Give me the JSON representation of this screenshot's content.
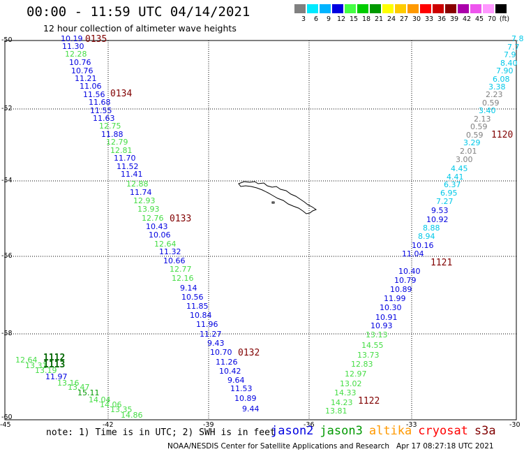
{
  "title": "00:00 - 11:59 UTC 04/14/2021",
  "subtitle": "12 hour collection of altimeter wave heights",
  "colorbar": {
    "colors": [
      "#808080",
      "#00eaff",
      "#00b4ff",
      "#0000e0",
      "#44ff44",
      "#00cc00",
      "#009900",
      "#ffff00",
      "#ffcc00",
      "#ff9900",
      "#ff0000",
      "#cc0000",
      "#880000",
      "#aa00aa",
      "#ee55ee",
      "#ff99ff",
      "#000000"
    ],
    "ticks": [
      "3",
      "6",
      "9",
      "12",
      "15",
      "18",
      "21",
      "24",
      "27",
      "30",
      "33",
      "36",
      "39",
      "42",
      "45",
      "70",
      "(ft)"
    ]
  },
  "lat_labels": [
    "-50",
    "-52",
    "-54",
    "-56",
    "-58",
    "-60"
  ],
  "lon_labels": [
    "-45",
    "-42",
    "-39",
    "-36",
    "-33",
    "-30"
  ],
  "tracks": [
    {
      "label": "0135",
      "color": "#800000"
    },
    {
      "label": "0134",
      "color": "#800000"
    },
    {
      "label": "0133",
      "color": "#800000"
    },
    {
      "label": "0132",
      "color": "#800000"
    },
    {
      "label": "1120",
      "color": "#800000"
    },
    {
      "label": "1121",
      "color": "#800000"
    },
    {
      "label": "1122",
      "color": "#800000"
    },
    {
      "label": "1112",
      "color": "#006600"
    },
    {
      "label": "1113",
      "color": "#006600"
    }
  ],
  "points": [
    {
      "v": "10.19",
      "c": "#0000e0"
    },
    {
      "v": "11.30",
      "c": "#0000e0"
    },
    {
      "v": "12.28",
      "c": "#44dd44"
    },
    {
      "v": "10.76",
      "c": "#0000e0"
    },
    {
      "v": "10.76",
      "c": "#0000e0"
    },
    {
      "v": "11.21",
      "c": "#0000e0"
    },
    {
      "v": "11.06",
      "c": "#0000e0"
    },
    {
      "v": "11.56",
      "c": "#0000e0"
    },
    {
      "v": "11.68",
      "c": "#0000e0"
    },
    {
      "v": "11.55",
      "c": "#0000e0"
    },
    {
      "v": "11.63",
      "c": "#0000e0"
    },
    {
      "v": "12.75",
      "c": "#44dd44"
    },
    {
      "v": "11.88",
      "c": "#0000e0"
    },
    {
      "v": "12.79",
      "c": "#44dd44"
    },
    {
      "v": "12.81",
      "c": "#44dd44"
    },
    {
      "v": "11.70",
      "c": "#0000e0"
    },
    {
      "v": "11.52",
      "c": "#0000e0"
    },
    {
      "v": "11.41",
      "c": "#0000e0"
    },
    {
      "v": "12.88",
      "c": "#44dd44"
    },
    {
      "v": "11.74",
      "c": "#0000e0"
    },
    {
      "v": "12.93",
      "c": "#44dd44"
    },
    {
      "v": "13.93",
      "c": "#44dd44"
    },
    {
      "v": "12.76",
      "c": "#44dd44"
    },
    {
      "v": "10.43",
      "c": "#0000e0"
    },
    {
      "v": "10.06",
      "c": "#0000e0"
    },
    {
      "v": "12.64",
      "c": "#44dd44"
    },
    {
      "v": "11.32",
      "c": "#0000e0"
    },
    {
      "v": "10.66",
      "c": "#0000e0"
    },
    {
      "v": "12.77",
      "c": "#44dd44"
    },
    {
      "v": "12.16",
      "c": "#44dd44"
    },
    {
      "v": "9.14",
      "c": "#0000e0"
    },
    {
      "v": "10.56",
      "c": "#0000e0"
    },
    {
      "v": "11.85",
      "c": "#0000e0"
    },
    {
      "v": "10.84",
      "c": "#0000e0"
    },
    {
      "v": "11.96",
      "c": "#0000e0"
    },
    {
      "v": "11.27",
      "c": "#0000e0"
    },
    {
      "v": "9.43",
      "c": "#0000e0"
    },
    {
      "v": "10.70",
      "c": "#0000e0"
    },
    {
      "v": "11.26",
      "c": "#0000e0"
    },
    {
      "v": "10.42",
      "c": "#0000e0"
    },
    {
      "v": "9.64",
      "c": "#0000e0"
    },
    {
      "v": "11.53",
      "c": "#0000e0"
    },
    {
      "v": "10.89",
      "c": "#0000e0"
    },
    {
      "v": "9.44",
      "c": "#0000e0"
    },
    {
      "v": "7.8",
      "c": "#00c8e8"
    },
    {
      "v": "7.7",
      "c": "#00c8e8"
    },
    {
      "v": "7.9",
      "c": "#00c8e8"
    },
    {
      "v": "8.40",
      "c": "#00c8e8"
    },
    {
      "v": "7.90",
      "c": "#00c8e8"
    },
    {
      "v": "6.08",
      "c": "#00c8e8"
    },
    {
      "v": "3.38",
      "c": "#00c8e8"
    },
    {
      "v": "2.23",
      "c": "#808080"
    },
    {
      "v": "0.59",
      "c": "#808080"
    },
    {
      "v": "3.40",
      "c": "#00c8e8"
    },
    {
      "v": "2.13",
      "c": "#808080"
    },
    {
      "v": "0.59",
      "c": "#808080"
    },
    {
      "v": "0.59",
      "c": "#808080"
    },
    {
      "v": "3.29",
      "c": "#00c8e8"
    },
    {
      "v": "2.01",
      "c": "#808080"
    },
    {
      "v": "3.00",
      "c": "#808080"
    },
    {
      "v": "4.45",
      "c": "#00c8e8"
    },
    {
      "v": "4.41",
      "c": "#00c8e8"
    },
    {
      "v": "6.37",
      "c": "#00c8e8"
    },
    {
      "v": "6.95",
      "c": "#00c8e8"
    },
    {
      "v": "7.27",
      "c": "#00c8e8"
    },
    {
      "v": "9.53",
      "c": "#0000e0"
    },
    {
      "v": "10.92",
      "c": "#0000e0"
    },
    {
      "v": "8.88",
      "c": "#00c8e8"
    },
    {
      "v": "8.94",
      "c": "#00c8e8"
    },
    {
      "v": "10.16",
      "c": "#0000e0"
    },
    {
      "v": "11.04",
      "c": "#0000e0"
    },
    {
      "v": "10.40",
      "c": "#0000e0"
    },
    {
      "v": "10.79",
      "c": "#0000e0"
    },
    {
      "v": "10.89",
      "c": "#0000e0"
    },
    {
      "v": "11.99",
      "c": "#0000e0"
    },
    {
      "v": "10.30",
      "c": "#0000e0"
    },
    {
      "v": "10.91",
      "c": "#0000e0"
    },
    {
      "v": "10.93",
      "c": "#0000e0"
    },
    {
      "v": "13.13",
      "c": "#44dd44"
    },
    {
      "v": "14.55",
      "c": "#44dd44"
    },
    {
      "v": "13.73",
      "c": "#44dd44"
    },
    {
      "v": "12.83",
      "c": "#44dd44"
    },
    {
      "v": "12.97",
      "c": "#44dd44"
    },
    {
      "v": "13.02",
      "c": "#44dd44"
    },
    {
      "v": "14.33",
      "c": "#44dd44"
    },
    {
      "v": "14.23",
      "c": "#44dd44"
    },
    {
      "v": "13.81",
      "c": "#44dd44"
    },
    {
      "v": "12.64",
      "c": "#44dd44"
    },
    {
      "v": "13.31",
      "c": "#44dd44"
    },
    {
      "v": "13.19",
      "c": "#44dd44"
    },
    {
      "v": "11.97",
      "c": "#0000e0"
    },
    {
      "v": "13.16",
      "c": "#44dd44"
    },
    {
      "v": "13.47",
      "c": "#44dd44"
    },
    {
      "v": "15.11",
      "c": "#009900"
    },
    {
      "v": "14.04",
      "c": "#44dd44"
    },
    {
      "v": "14.06",
      "c": "#44dd44"
    },
    {
      "v": "13.35",
      "c": "#44dd44"
    },
    {
      "v": "14.86",
      "c": "#44dd44"
    }
  ],
  "note": "note: 1) Time is in UTC; 2) SWH is in feet",
  "legend": [
    {
      "name": "jason2",
      "color": "#0000e0"
    },
    {
      "name": "jason3",
      "color": "#009900"
    },
    {
      "name": "altika",
      "color": "#ff9900"
    },
    {
      "name": "cryosat",
      "color": "#ff0000"
    },
    {
      "name": "s3a",
      "color": "#800000"
    }
  ],
  "footer": "NOAA/NESDIS Center for Satellite Applications and Research   Apr 17 08:27:18 UTC 2021"
}
